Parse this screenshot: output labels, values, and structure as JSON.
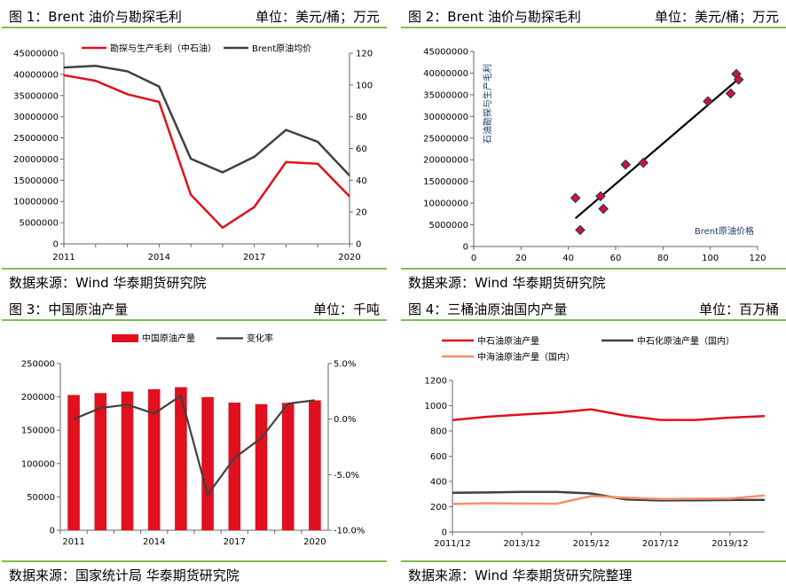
{
  "panels": [
    {
      "title": "图 1：Brent 油价与勘探毛利",
      "unit": "单位：美元/桶；万元",
      "source": "数据来源：Wind 华泰期货研究院"
    },
    {
      "title": "图 2：Brent 油价与勘探毛利",
      "unit": "单位：美元/桶；万元",
      "source": "数据来源：Wind 华泰期货研究院"
    },
    {
      "title": "图 3：中国原油产量",
      "unit": "单位：千吨",
      "source": "数据来源：国家统计局 华泰期货研究院"
    },
    {
      "title": "图 4：三桶油原油国内产量",
      "unit": "单位：百万桶",
      "source": "数据来源：Wind 华泰期货研究院整理"
    }
  ],
  "colors": {
    "red": "#e0101e",
    "dark": "#404040",
    "orange": "#f4906a",
    "green": "#7fbf4d",
    "navy": "#1f3a6e"
  },
  "chart_data": [
    {
      "type": "line",
      "x": [
        2011,
        2012,
        2013,
        2014,
        2015,
        2016,
        2017,
        2018,
        2019,
        2020
      ],
      "x_ticks": [
        "2011",
        "2014",
        "2017",
        "2020"
      ],
      "y_ticks": [
        "0",
        "5000000",
        "10000000",
        "15000000",
        "20000000",
        "25000000",
        "30000000",
        "35000000",
        "40000000",
        "45000000"
      ],
      "y2_ticks": [
        "0",
        "20",
        "40",
        "60",
        "80",
        "100",
        "120"
      ],
      "ylim": [
        0,
        45000000
      ],
      "y2lim": [
        0,
        120
      ],
      "series": [
        {
          "name": "勘探与生产毛利（中石油）",
          "axis": "left",
          "color": "#e0101e",
          "values": [
            39800000,
            38500000,
            35300000,
            33500000,
            11600000,
            3800000,
            8700000,
            19300000,
            18900000,
            11200000
          ]
        },
        {
          "name": "Brent原油均价",
          "axis": "right",
          "color": "#404040",
          "values": [
            111,
            112,
            108.6,
            99,
            53.6,
            45,
            54.8,
            71.7,
            64.2,
            43
          ]
        }
      ]
    },
    {
      "type": "scatter",
      "xlabel": "Brent原油价格",
      "ylabel": "石油勘探与生产毛利",
      "x_ticks": [
        "0",
        "20",
        "40",
        "60",
        "80",
        "100",
        "120"
      ],
      "y_ticks": [
        "0",
        "5000000",
        "10000000",
        "15000000",
        "20000000",
        "25000000",
        "30000000",
        "35000000",
        "40000000",
        "45000000"
      ],
      "xlim": [
        0,
        120
      ],
      "ylim": [
        0,
        45000000
      ],
      "points": [
        [
          111,
          39800000
        ],
        [
          112,
          38500000
        ],
        [
          108.6,
          35300000
        ],
        [
          99,
          33500000
        ],
        [
          53.6,
          11600000
        ],
        [
          45,
          3800000
        ],
        [
          54.8,
          8700000
        ],
        [
          71.7,
          19300000
        ],
        [
          64.2,
          18900000
        ],
        [
          43,
          11200000
        ]
      ],
      "trendline": [
        [
          43,
          6500000
        ],
        [
          112,
          38700000
        ]
      ]
    },
    {
      "type": "bar",
      "x": [
        2011,
        2012,
        2013,
        2014,
        2015,
        2016,
        2017,
        2018,
        2019,
        2020
      ],
      "x_ticks": [
        "2011",
        "2014",
        "2017",
        "2020"
      ],
      "y_ticks": [
        "0",
        "50000",
        "100000",
        "150000",
        "200000",
        "250000"
      ],
      "y2_ticks": [
        "-10.0%",
        "-5.0%",
        "0.0%",
        "5.0%"
      ],
      "ylim": [
        0,
        250000
      ],
      "y2lim": [
        -10,
        5
      ],
      "series": [
        {
          "name": "中国原油产量",
          "kind": "bar",
          "axis": "left",
          "color": "#e0101e",
          "values": [
            202900,
            205700,
            208000,
            211400,
            214600,
            199700,
            191500,
            189100,
            191000,
            194800
          ]
        },
        {
          "name": "变化率",
          "kind": "line",
          "axis": "right",
          "color": "#404040",
          "values": [
            0.0,
            1.0,
            1.3,
            0.5,
            2.1,
            -6.8,
            -3.5,
            -1.7,
            1.4,
            1.7
          ]
        }
      ]
    },
    {
      "type": "line",
      "x_ticks": [
        "2011/12",
        "2013/12",
        "2015/12",
        "2017/12",
        "2019/12"
      ],
      "y_ticks": [
        "0",
        "200",
        "400",
        "600",
        "800",
        "1000",
        "1200"
      ],
      "ylim": [
        0,
        1200
      ],
      "x": [
        2011,
        2012,
        2013,
        2014,
        2015,
        2016,
        2017,
        2018,
        2019,
        2020
      ],
      "series": [
        {
          "name": "中石油原油产量",
          "color": "#e0101e",
          "values": [
            886,
            912,
            930,
            945,
            971,
            920,
            887,
            887,
            905,
            918
          ]
        },
        {
          "name": "中石化原油产量（国内）",
          "color": "#404040",
          "values": [
            310,
            313,
            317,
            317,
            305,
            258,
            250,
            251,
            253,
            255
          ]
        },
        {
          "name": "中海油原油产量（国内）",
          "color": "#f4906a",
          "values": [
            222,
            228,
            225,
            224,
            285,
            272,
            262,
            263,
            265,
            290
          ]
        }
      ]
    }
  ]
}
